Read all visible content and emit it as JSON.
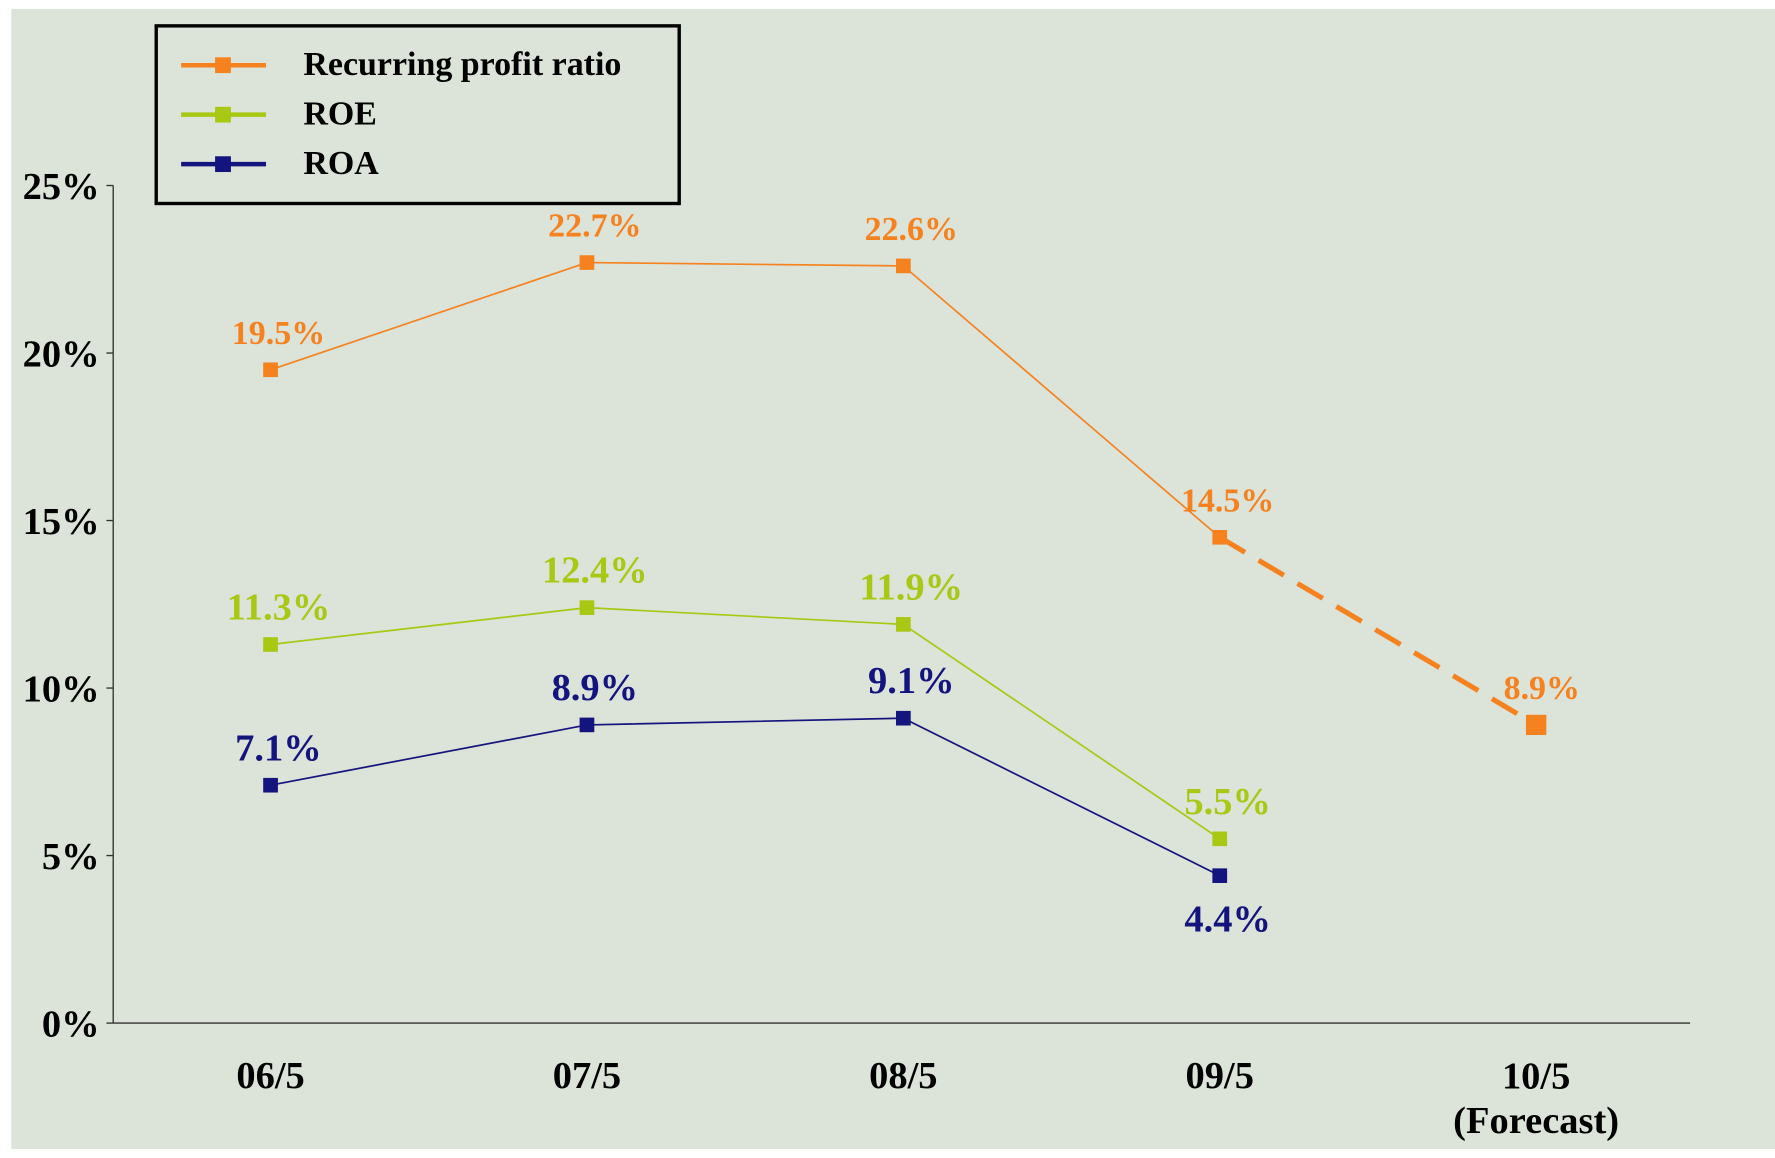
{
  "chart_data": {
    "type": "line",
    "categories": [
      "06/5",
      "07/5",
      "08/5",
      "09/5",
      "10/5\n(Forecast)"
    ],
    "series": [
      {
        "name": "Recurring profit ratio",
        "color": "#f5821f",
        "values": [
          19.5,
          22.7,
          22.6,
          14.5,
          8.9
        ],
        "value_labels": [
          "19.5%",
          "22.7%",
          "22.6%",
          "14.5%",
          "8.9%"
        ]
      },
      {
        "name": "ROE",
        "color": "#a8c814",
        "values": [
          11.3,
          12.4,
          11.9,
          5.5,
          null
        ],
        "value_labels": [
          "11.3%",
          "12.4%",
          "11.9%",
          "5.5%",
          null
        ]
      },
      {
        "name": "ROA",
        "color": "#14147e",
        "values": [
          7.1,
          8.9,
          9.1,
          4.4,
          null
        ],
        "value_labels": [
          "7.1%",
          "8.9%",
          "9.1%",
          "4.4%",
          null
        ]
      }
    ],
    "ylim": [
      0,
      25
    ],
    "yticks": [
      {
        "value": 0,
        "label": "0%"
      },
      {
        "value": 5,
        "label": "5%"
      },
      {
        "value": 10,
        "label": "10%"
      },
      {
        "value": 15,
        "label": "15%"
      },
      {
        "value": 20,
        "label": "20%"
      },
      {
        "value": 25,
        "label": "25%"
      }
    ],
    "grid": false,
    "legend": "top-left"
  }
}
